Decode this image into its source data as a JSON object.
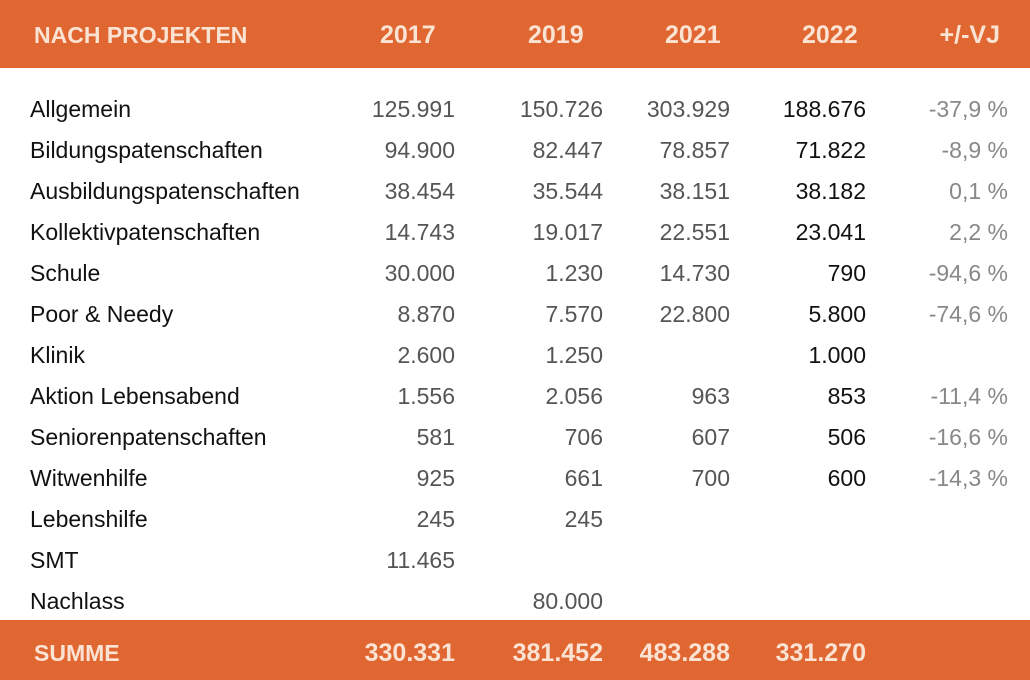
{
  "header": {
    "label": "NACH PROJEKTEN",
    "col_2017": "2017",
    "col_2019": "2019",
    "col_2021": "2021",
    "col_2022": "2022",
    "col_vj": "+/-VJ"
  },
  "rows": [
    {
      "label": "Allgemein",
      "y2017": "125.991",
      "y2019": "150.726",
      "y2021": "303.929",
      "y2022": "188.676",
      "vj": "-37,9 %"
    },
    {
      "label": "Bildungspatenschaften",
      "y2017": "94.900",
      "y2019": "82.447",
      "y2021": "78.857",
      "y2022": "71.822",
      "vj": "-8,9 %"
    },
    {
      "label": "Ausbildungspatenschaften",
      "y2017": "38.454",
      "y2019": "35.544",
      "y2021": "38.151",
      "y2022": "38.182",
      "vj": "0,1 %"
    },
    {
      "label": "Kollektivpatenschaften",
      "y2017": "14.743",
      "y2019": "19.017",
      "y2021": "22.551",
      "y2022": "23.041",
      "vj": "2,2 %"
    },
    {
      "label": "Schule",
      "y2017": "30.000",
      "y2019": "1.230",
      "y2021": "14.730",
      "y2022": "790",
      "vj": "-94,6 %"
    },
    {
      "label": "Poor & Needy",
      "y2017": "8.870",
      "y2019": "7.570",
      "y2021": "22.800",
      "y2022": "5.800",
      "vj": "-74,6 %"
    },
    {
      "label": "Klinik",
      "y2017": "2.600",
      "y2019": "1.250",
      "y2021": "",
      "y2022": "1.000",
      "vj": ""
    },
    {
      "label": "Aktion Lebensabend",
      "y2017": "1.556",
      "y2019": "2.056",
      "y2021": "963",
      "y2022": "853",
      "vj": "-11,4 %"
    },
    {
      "label": "Seniorenpatenschaften",
      "y2017": "581",
      "y2019": "706",
      "y2021": "607",
      "y2022": "506",
      "vj": "-16,6 %"
    },
    {
      "label": "Witwenhilfe",
      "y2017": "925",
      "y2019": "661",
      "y2021": "700",
      "y2022": "600",
      "vj": "-14,3 %"
    },
    {
      "label": "Lebenshilfe",
      "y2017": "245",
      "y2019": "245",
      "y2021": "",
      "y2022": "",
      "vj": ""
    },
    {
      "label": "SMT",
      "y2017": "11.465",
      "y2019": "",
      "y2021": "",
      "y2022": "",
      "vj": ""
    },
    {
      "label": "Nachlass",
      "y2017": "",
      "y2019": "80.000",
      "y2021": "",
      "y2022": "",
      "vj": ""
    }
  ],
  "footer": {
    "label": "SUMME",
    "sum_2017": "330.331",
    "sum_2019": "381.452",
    "sum_2021": "483.288",
    "sum_2022": "331.270"
  },
  "colors": {
    "accent": "#e06732",
    "header_text": "#fbe3d3"
  }
}
